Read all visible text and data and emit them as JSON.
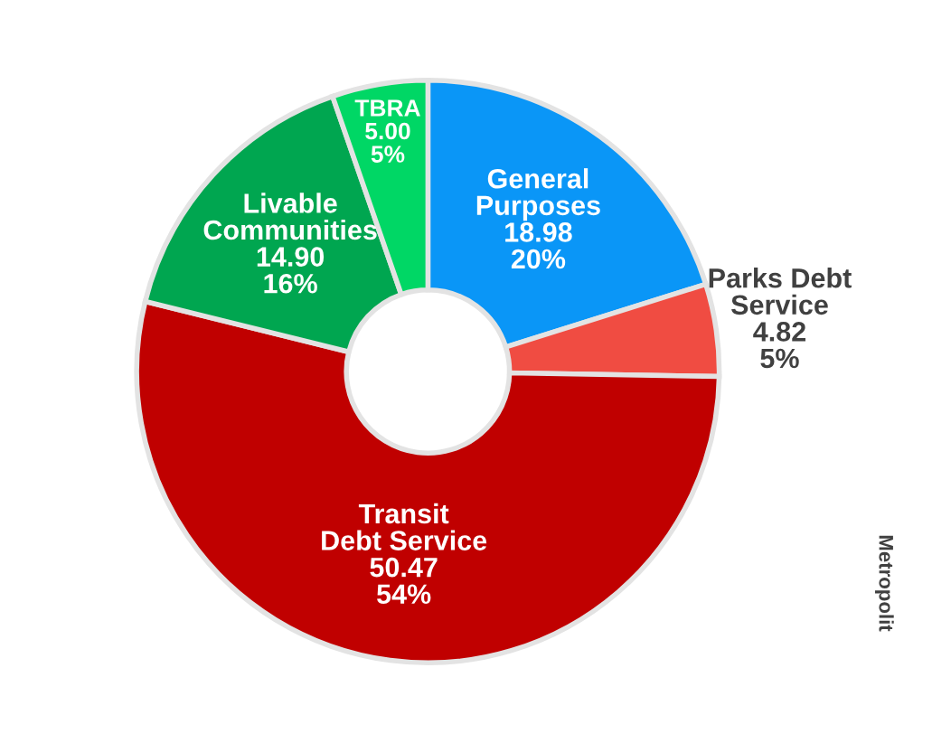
{
  "chart_data": {
    "type": "donut",
    "categories": [
      "General Purposes",
      "Parks Debt Service",
      "Transit Debt Service",
      "Livable Communities",
      "TBRA"
    ],
    "values": [
      18.98,
      4.82,
      50.47,
      14.9,
      5.0
    ],
    "colors": [
      "#0a96f7",
      "#f04c42",
      "#c00000",
      "#00a650",
      "#00d765"
    ],
    "value_labels": [
      "18.98\n20%",
      "4.82\n5%",
      "50.47\n54%",
      "14.90\n16%",
      "5.00\n5%"
    ],
    "annotations": [
      "Metropolit"
    ]
  }
}
